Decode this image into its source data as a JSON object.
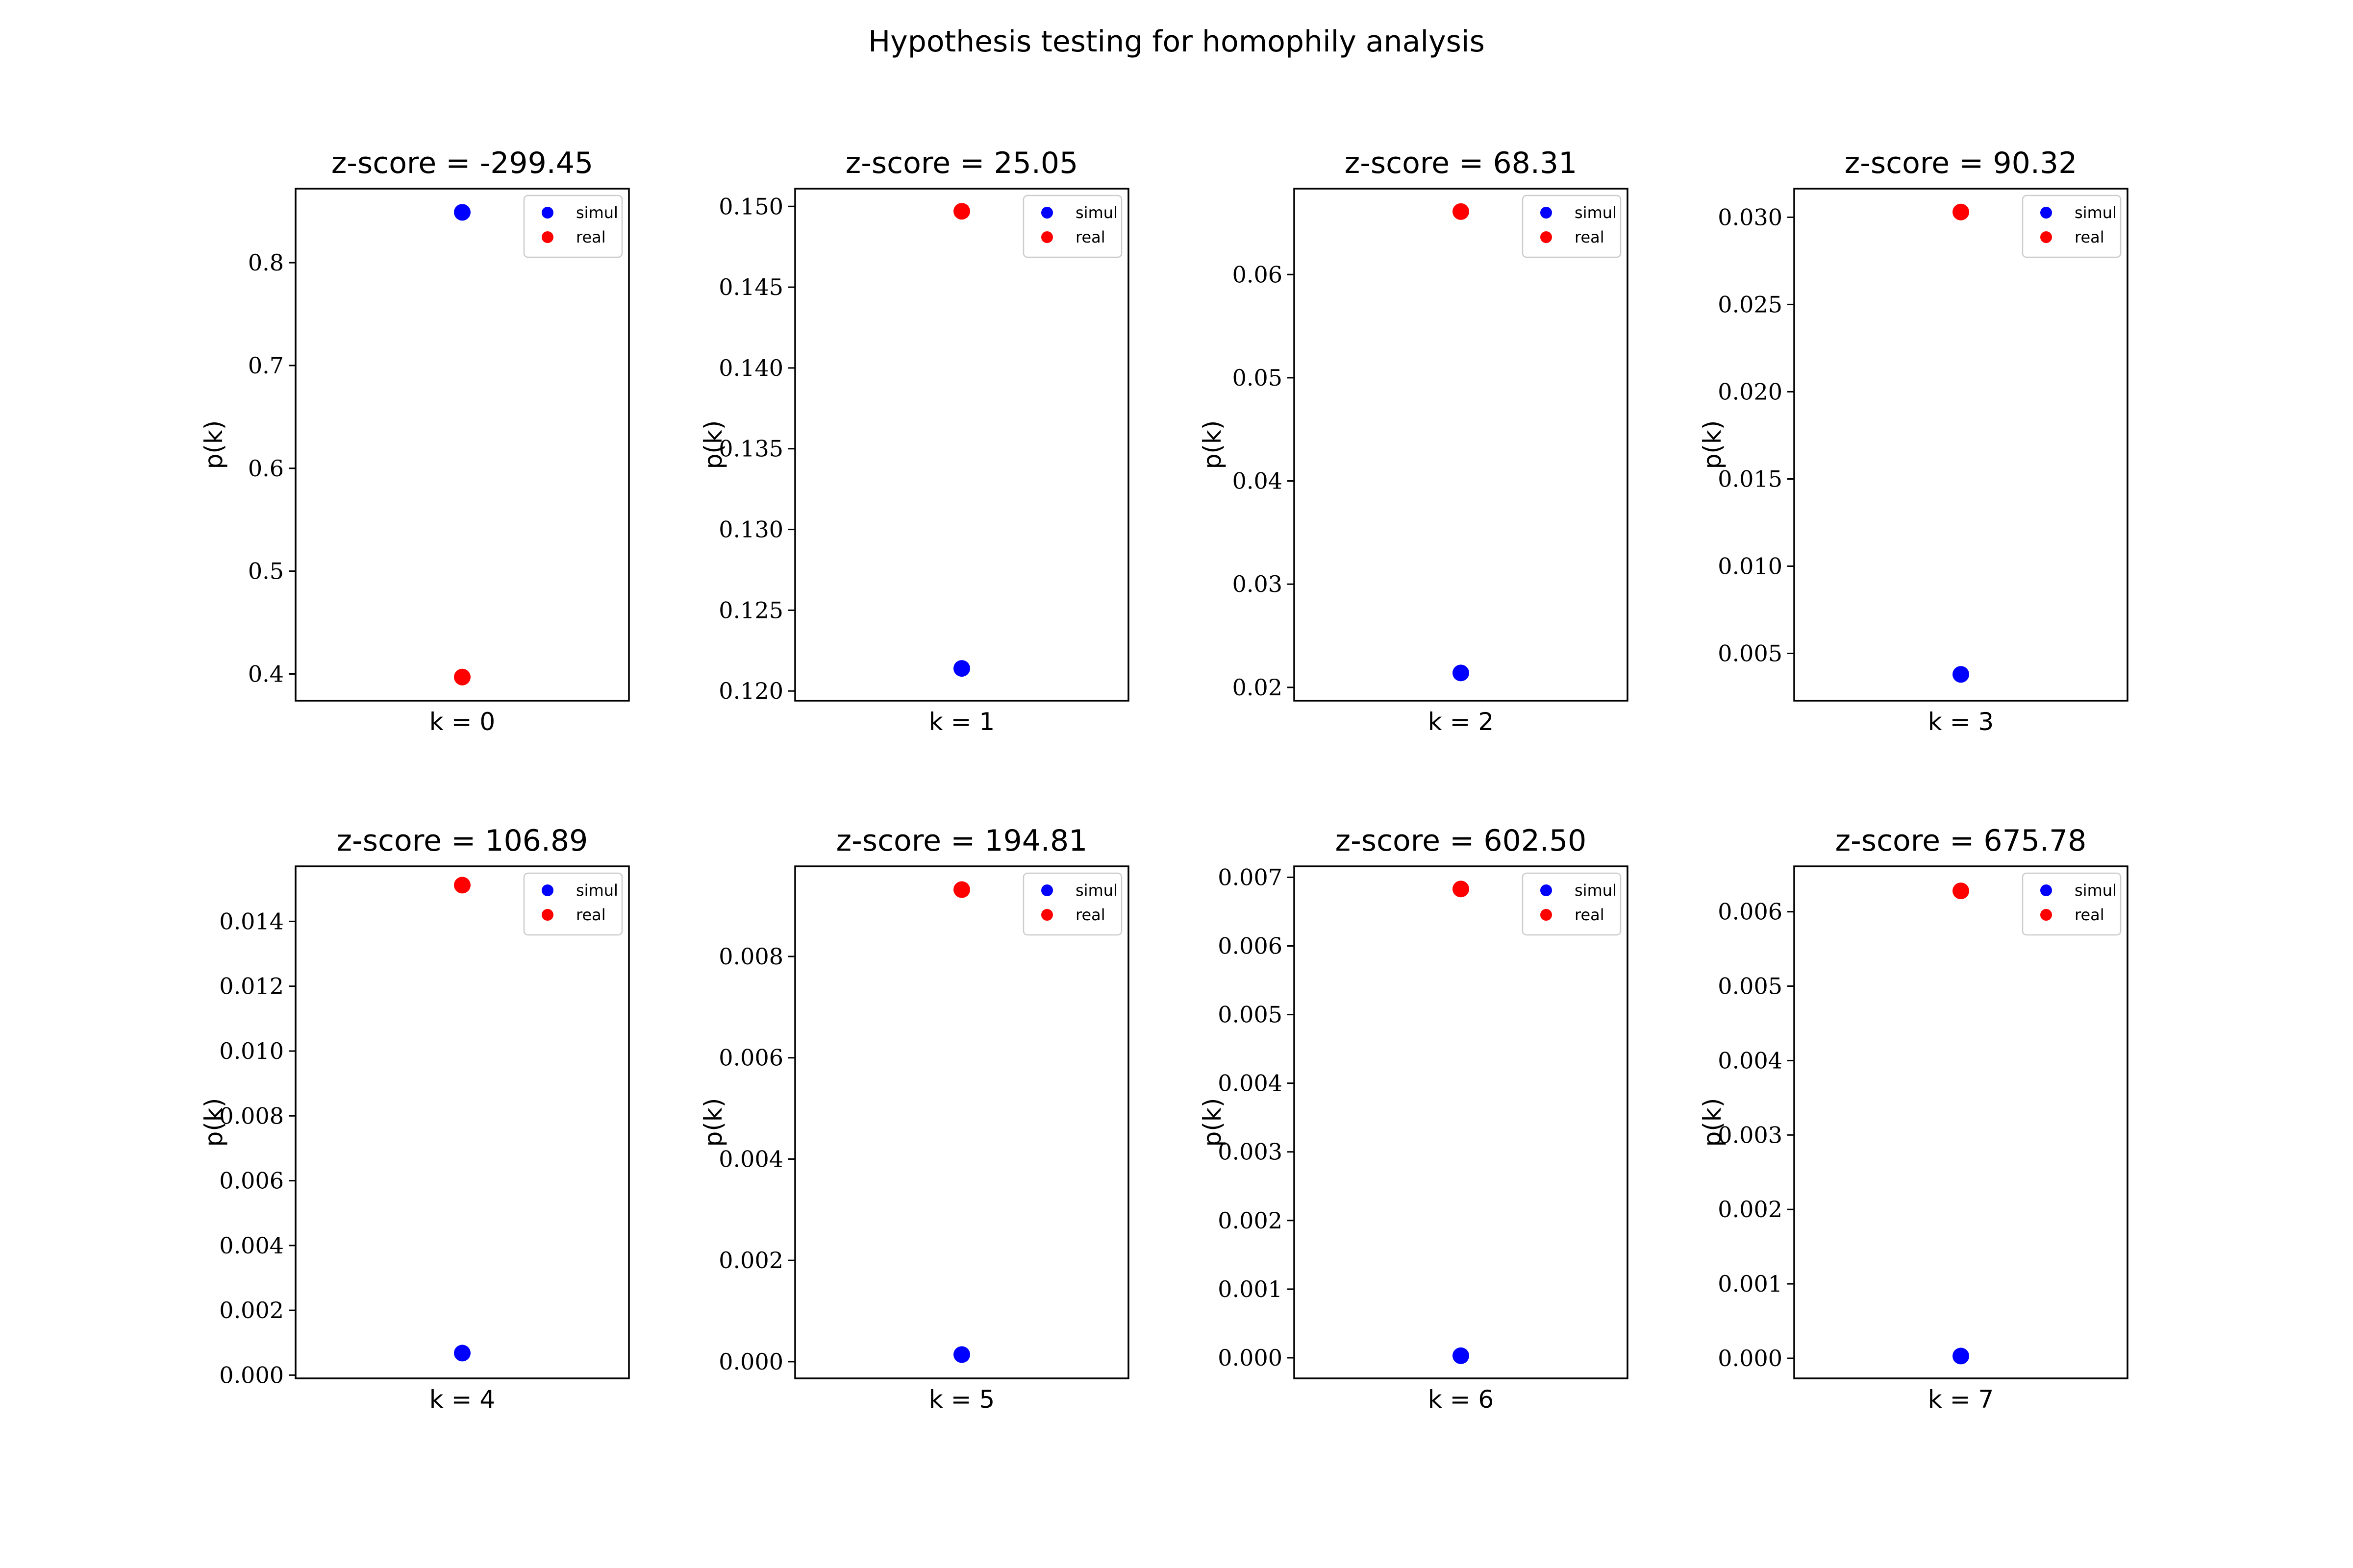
{
  "figure": {
    "suptitle": "Hypothesis testing for homophily analysis",
    "legend_labels": [
      "simul",
      "real"
    ],
    "colors": {
      "simul": "#0000ff",
      "real": "#ff0000"
    },
    "ylabel": "p(k)"
  },
  "chart_data": [
    {
      "type": "scatter",
      "title": "z-score = -299.45",
      "xlabel": "k = 0",
      "ylabel": "p(k)",
      "ylim": [
        0.374,
        0.872
      ],
      "yticks": [
        0.4,
        0.5,
        0.6,
        0.7,
        0.8
      ],
      "ytick_labels": [
        "0.4",
        "0.5",
        "0.6",
        "0.7",
        "0.8"
      ],
      "legend": "top-right",
      "series": [
        {
          "name": "simul",
          "values": [
            0.849
          ]
        },
        {
          "name": "real",
          "values": [
            0.397
          ]
        }
      ]
    },
    {
      "type": "scatter",
      "title": "z-score = 25.05",
      "xlabel": "k = 1",
      "ylabel": "p(k)",
      "ylim": [
        0.1194,
        0.1511
      ],
      "yticks": [
        0.12,
        0.125,
        0.13,
        0.135,
        0.14,
        0.145,
        0.15
      ],
      "ytick_labels": [
        "0.120",
        "0.125",
        "0.130",
        "0.135",
        "0.140",
        "0.145",
        "0.150"
      ],
      "legend": "top-right",
      "series": [
        {
          "name": "simul",
          "values": [
            0.1214
          ]
        },
        {
          "name": "real",
          "values": [
            0.1497
          ]
        }
      ]
    },
    {
      "type": "scatter",
      "title": "z-score = 68.31",
      "xlabel": "k = 2",
      "ylabel": "p(k)",
      "ylim": [
        0.01871,
        0.06832
      ],
      "yticks": [
        0.02,
        0.03,
        0.04,
        0.05,
        0.06
      ],
      "ytick_labels": [
        "0.02",
        "0.03",
        "0.04",
        "0.05",
        "0.06"
      ],
      "legend": "top-right",
      "series": [
        {
          "name": "simul",
          "values": [
            0.0214
          ]
        },
        {
          "name": "real",
          "values": [
            0.0661
          ]
        }
      ]
    },
    {
      "type": "scatter",
      "title": "z-score = 90.32",
      "xlabel": "k = 3",
      "ylabel": "p(k)",
      "ylim": [
        0.00229,
        0.03164
      ],
      "yticks": [
        0.005,
        0.01,
        0.015,
        0.02,
        0.025,
        0.03
      ],
      "ytick_labels": [
        "0.005",
        "0.010",
        "0.015",
        "0.020",
        "0.025",
        "0.030"
      ],
      "legend": "top-right",
      "series": [
        {
          "name": "simul",
          "values": [
            0.0038
          ]
        },
        {
          "name": "real",
          "values": [
            0.0303
          ]
        }
      ]
    },
    {
      "type": "scatter",
      "title": "z-score = 106.89",
      "xlabel": "k = 4",
      "ylabel": "p(k)",
      "ylim": [
        -0.0001,
        0.0157
      ],
      "yticks": [
        0.0,
        0.002,
        0.004,
        0.006,
        0.008,
        0.01,
        0.012,
        0.014
      ],
      "ytick_labels": [
        "0.000",
        "0.002",
        "0.004",
        "0.006",
        "0.008",
        "0.010",
        "0.012",
        "0.014"
      ],
      "legend": "top-right",
      "series": [
        {
          "name": "simul",
          "values": [
            0.00068
          ]
        },
        {
          "name": "real",
          "values": [
            0.01512
          ]
        }
      ]
    },
    {
      "type": "scatter",
      "title": "z-score = 194.81",
      "xlabel": "k = 5",
      "ylabel": "p(k)",
      "ylim": [
        -0.00033,
        0.00978
      ],
      "yticks": [
        0.0,
        0.002,
        0.004,
        0.006,
        0.008
      ],
      "ytick_labels": [
        "0.000",
        "0.002",
        "0.004",
        "0.006",
        "0.008"
      ],
      "legend": "top-right",
      "series": [
        {
          "name": "simul",
          "values": [
            0.00014
          ]
        },
        {
          "name": "real",
          "values": [
            0.00932
          ]
        }
      ]
    },
    {
      "type": "scatter",
      "title": "z-score = 602.50",
      "xlabel": "k = 6",
      "ylabel": "p(k)",
      "ylim": [
        -0.0003,
        0.00716
      ],
      "yticks": [
        0.0,
        0.001,
        0.002,
        0.003,
        0.004,
        0.005,
        0.006,
        0.007
      ],
      "ytick_labels": [
        "0.000",
        "0.001",
        "0.002",
        "0.003",
        "0.004",
        "0.005",
        "0.006",
        "0.007"
      ],
      "legend": "top-right",
      "series": [
        {
          "name": "simul",
          "values": [
            3e-05
          ]
        },
        {
          "name": "real",
          "values": [
            0.00683
          ]
        }
      ]
    },
    {
      "type": "scatter",
      "title": "z-score = 675.78",
      "xlabel": "k = 7",
      "ylabel": "p(k)",
      "ylim": [
        -0.00027,
        0.00661
      ],
      "yticks": [
        0.0,
        0.001,
        0.002,
        0.003,
        0.004,
        0.005,
        0.006
      ],
      "ytick_labels": [
        "0.000",
        "0.001",
        "0.002",
        "0.003",
        "0.004",
        "0.005",
        "0.006"
      ],
      "legend": "top-right",
      "series": [
        {
          "name": "simul",
          "values": [
            3e-05
          ]
        },
        {
          "name": "real",
          "values": [
            0.00628
          ]
        }
      ]
    }
  ]
}
